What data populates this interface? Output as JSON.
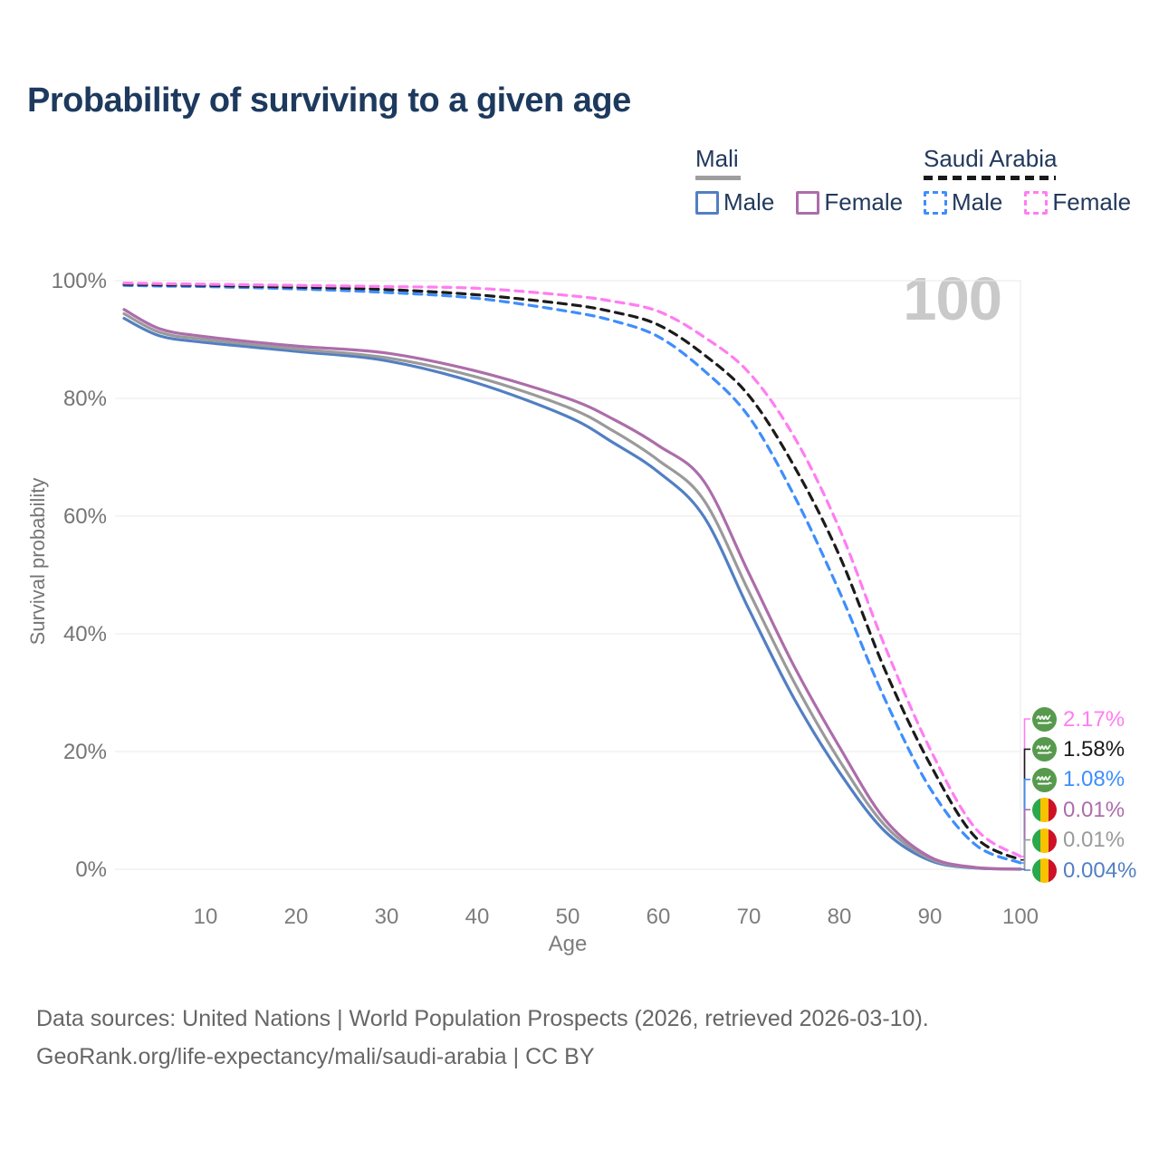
{
  "title": "Probability of surviving to a given age",
  "age_indicator": "100",
  "legend": {
    "groups": [
      {
        "id": "mali",
        "label": "Mali",
        "underline_style": "solid",
        "underline_color": "#9e9e9e",
        "items": [
          {
            "label": "Male",
            "color": "#527fc3",
            "dash": false
          },
          {
            "label": "Female",
            "color": "#ac6daa",
            "dash": false
          }
        ]
      },
      {
        "id": "saudi-arabia",
        "label": "Saudi Arabia",
        "underline_style": "dashed",
        "underline_color": "#1a1a1a",
        "items": [
          {
            "label": "Male",
            "color": "#3e8efc",
            "dash": true
          },
          {
            "label": "Female",
            "color": "#ff7df2",
            "dash": true
          }
        ]
      }
    ]
  },
  "axes": {
    "y_label": "Survival probability",
    "x_label": "Age",
    "y_ticks": [
      {
        "value": 100,
        "label": "100%"
      },
      {
        "value": 80,
        "label": "80%"
      },
      {
        "value": 60,
        "label": "60%"
      },
      {
        "value": 40,
        "label": "40%"
      },
      {
        "value": 20,
        "label": "20%"
      },
      {
        "value": 0,
        "label": "0%"
      }
    ],
    "x_ticks": [
      {
        "value": 10,
        "label": "10"
      },
      {
        "value": 20,
        "label": "20"
      },
      {
        "value": 30,
        "label": "30"
      },
      {
        "value": 40,
        "label": "40"
      },
      {
        "value": 50,
        "label": "50"
      },
      {
        "value": 60,
        "label": "60"
      },
      {
        "value": 70,
        "label": "70"
      },
      {
        "value": 80,
        "label": "80"
      },
      {
        "value": 90,
        "label": "90"
      },
      {
        "value": 100,
        "label": "100"
      }
    ]
  },
  "footer": {
    "line1": "Data sources: United Nations | World Population Prospects (2026, retrieved 2026-03-10).",
    "line2": "GeoRank.org/life-expectancy/mali/saudi-arabia | CC BY"
  },
  "chart_data": {
    "type": "line",
    "title": "Probability of surviving to a given age",
    "xlabel": "Age",
    "ylabel": "Survival probability",
    "x_range": [
      0,
      100
    ],
    "y_range_percent": [
      0,
      100
    ],
    "grid": "horizontal",
    "x": [
      1,
      5,
      10,
      20,
      30,
      40,
      50,
      55,
      60,
      65,
      70,
      75,
      80,
      85,
      90,
      95,
      100
    ],
    "series": [
      {
        "name": "Saudi Arabia Female",
        "country": "Saudi Arabia",
        "sex": "Female",
        "flag": "saudi",
        "color": "#ff7df2",
        "line_style": "dashed",
        "end_label": "2.17%",
        "values": [
          99.6,
          99.5,
          99.4,
          99.2,
          99.0,
          98.7,
          97.5,
          96.5,
          94.8,
          90.5,
          84.4,
          73.5,
          57.9,
          38.0,
          20.5,
          7.0,
          2.17
        ]
      },
      {
        "name": "Saudi Arabia Both sexes",
        "country": "Saudi Arabia",
        "sex": "Both",
        "flag": "saudi",
        "color": "#1b1b1b",
        "line_style": "dashed",
        "end_label": "1.58%",
        "values": [
          99.4,
          99.3,
          99.2,
          98.9,
          98.5,
          97.6,
          96.0,
          94.7,
          92.5,
          87.5,
          80.5,
          68.5,
          53.3,
          34.0,
          17.9,
          5.5,
          1.58
        ]
      },
      {
        "name": "Saudi Arabia Male",
        "country": "Saudi Arabia",
        "sex": "Male",
        "flag": "saudi",
        "color": "#3e8efc",
        "line_style": "dashed",
        "end_label": "1.08%",
        "values": [
          99.2,
          99.1,
          99.0,
          98.6,
          98.0,
          97.0,
          94.8,
          93.2,
          90.5,
          84.8,
          76.9,
          63.5,
          47.2,
          29.0,
          13.8,
          4.2,
          1.08
        ]
      },
      {
        "name": "Mali Female",
        "country": "Mali",
        "sex": "Female",
        "flag": "mali",
        "color": "#ac6daa",
        "line_style": "solid",
        "end_label": "0.01%",
        "values": [
          95.1,
          91.8,
          90.5,
          88.9,
          87.7,
          84.6,
          80.0,
          76.5,
          72.0,
          66.0,
          50.3,
          34.5,
          20.8,
          8.5,
          2.1,
          0.3,
          0.01
        ]
      },
      {
        "name": "Mali Both sexes",
        "country": "Mali",
        "sex": "Both",
        "flag": "mali",
        "color": "#9a9a9a",
        "line_style": "solid",
        "end_label": "0.01%",
        "values": [
          94.4,
          91.2,
          90.0,
          88.4,
          86.9,
          83.6,
          78.5,
          74.5,
          69.5,
          62.8,
          47.2,
          31.8,
          18.5,
          7.5,
          1.8,
          0.25,
          0.01
        ]
      },
      {
        "name": "Mali Male",
        "country": "Mali",
        "sex": "Male",
        "flag": "mali",
        "color": "#527fc3",
        "line_style": "solid",
        "end_label": "0.004%",
        "values": [
          93.6,
          90.6,
          89.5,
          88.0,
          86.4,
          82.6,
          76.9,
          72.5,
          67.5,
          60.0,
          44.2,
          29.0,
          16.5,
          6.5,
          1.5,
          0.2,
          0.004
        ]
      }
    ]
  }
}
